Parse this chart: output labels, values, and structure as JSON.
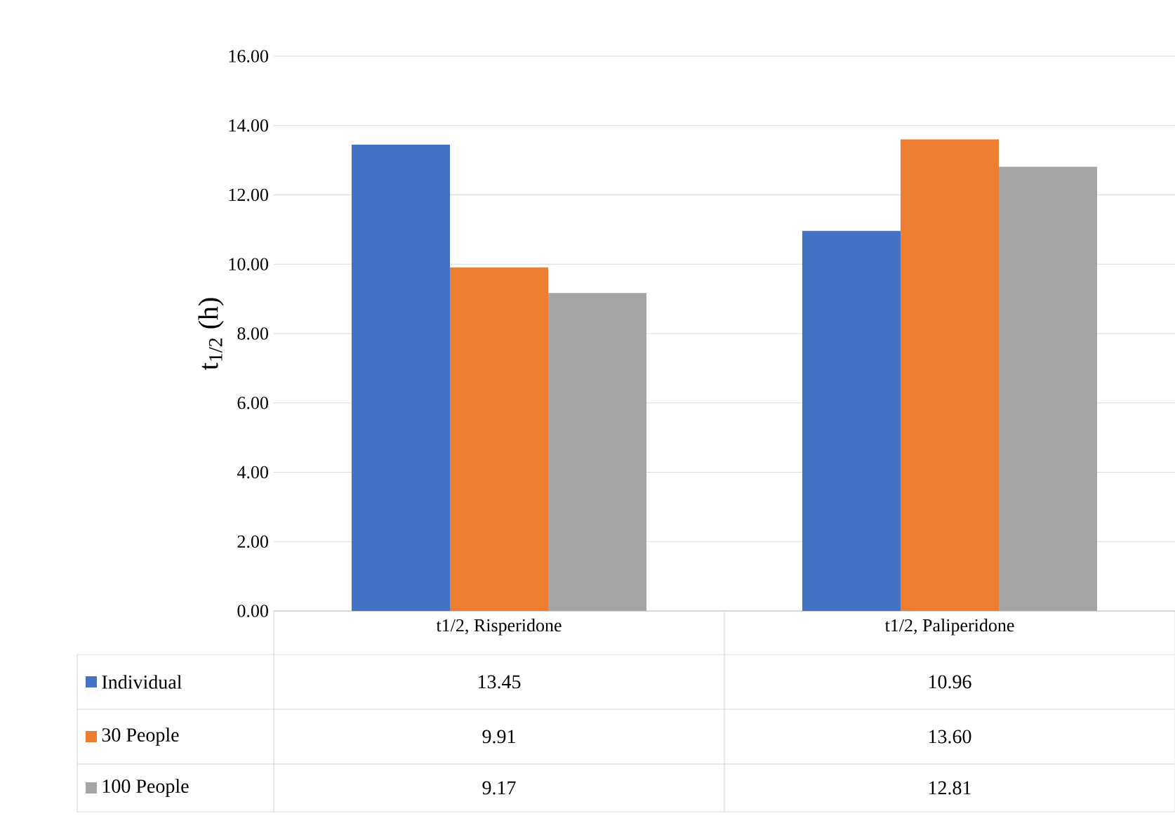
{
  "chart_data": {
    "type": "bar",
    "ylabel": "t$_{1/2}$ (h)",
    "categories": [
      "t1/2, Risperidone",
      "t1/2, Paliperidone"
    ],
    "series": [
      {
        "name": "Individual",
        "color": "#4472c4",
        "values": [
          13.45,
          10.96
        ],
        "value_labels": [
          "13.45",
          "10.96"
        ]
      },
      {
        "name": "30 People",
        "color": "#ed7d31",
        "values": [
          9.91,
          13.6
        ],
        "value_labels": [
          "9.91",
          "13.60"
        ]
      },
      {
        "name": "100 People",
        "color": "#a5a5a5",
        "values": [
          9.17,
          12.81
        ],
        "value_labels": [
          "9.17",
          "12.81"
        ]
      }
    ],
    "ylim": [
      0,
      16
    ],
    "yticks": [
      {
        "value": 0,
        "label": "0.00"
      },
      {
        "value": 2,
        "label": "2.00"
      },
      {
        "value": 4,
        "label": "4.00"
      },
      {
        "value": 6,
        "label": "6.00"
      },
      {
        "value": 8,
        "label": "8.00"
      },
      {
        "value": 10,
        "label": "10.00"
      },
      {
        "value": 12,
        "label": "12.00"
      },
      {
        "value": 14,
        "label": "14.00"
      },
      {
        "value": 16,
        "label": "16.00"
      }
    ],
    "grid": "y",
    "legend": "bottom"
  }
}
